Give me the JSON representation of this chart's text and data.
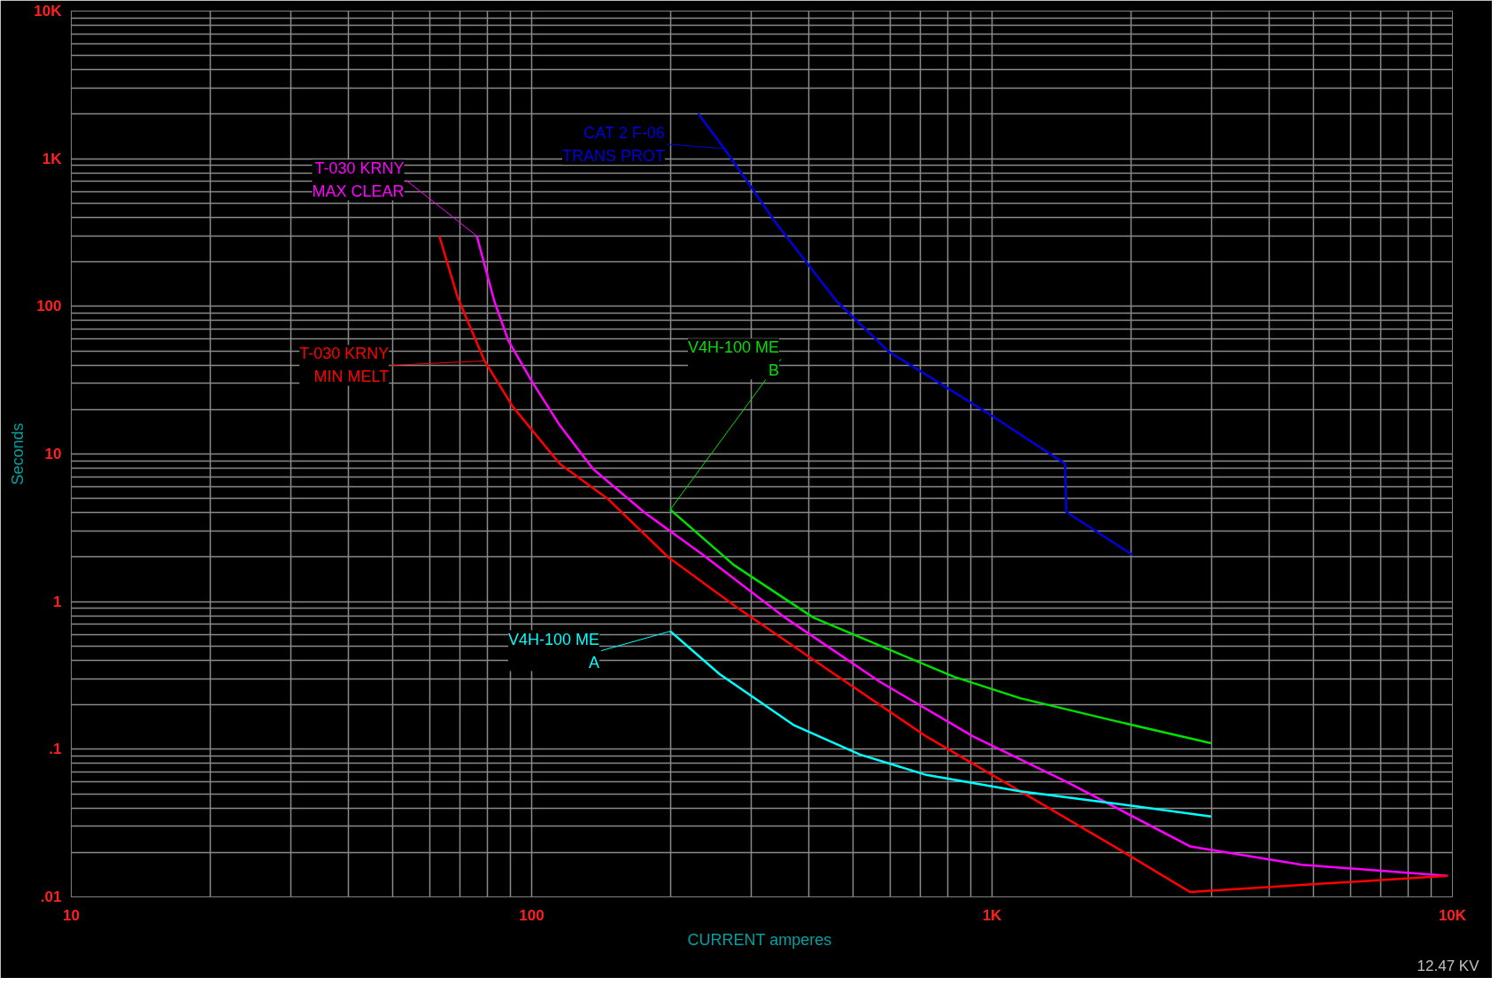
{
  "chart_data": {
    "type": "line",
    "xlabel": "CURRENT  amperes",
    "ylabel": "Seconds",
    "log": "xy",
    "grid": true,
    "legend": "top left",
    "marker": "none",
    "line_style": "solid",
    "xlim": [
      10,
      10000
    ],
    "ylim": [
      0.01,
      10000
    ],
    "xticks": [
      10,
      100,
      {
        "value": 1000,
        "label": "1K"
      },
      {
        "value": 10000,
        "label": "10K"
      }
    ],
    "yticks": [
      {
        "value": 0.01,
        "label": ".01"
      },
      {
        "value": 0.1,
        "label": ".1"
      },
      1,
      10,
      100,
      {
        "value": 1000,
        "label": "1K"
      },
      {
        "value": 10000,
        "label": "10K"
      }
    ],
    "annotations": [
      "12.47 KV"
    ],
    "series": [
      {
        "name": "T-030 KRNY\nMAX CLEAR",
        "color": "#ff00ff",
        "x": [
          76,
          83,
          89,
          100,
          115,
          136,
          176,
          233,
          355,
          569,
          910,
          1455,
          2690,
          4710,
          9770
        ],
        "values": [
          300,
          108,
          58.5,
          31.2,
          15.7,
          7.9,
          4.0,
          2.13,
          0.78,
          0.288,
          0.122,
          0.06,
          0.022,
          0.0165,
          0.0139
        ]
      },
      {
        "name": "T-030 KRNY\nMIN MELT",
        "color": "#ff0000",
        "x": [
          63,
          69,
          79,
          91,
          115,
          146,
          198,
          281,
          450,
          720,
          1150,
          1840,
          2690,
          9770
        ],
        "values": [
          300,
          116,
          42.7,
          20.9,
          8.6,
          5.0,
          2.0,
          0.9,
          0.33,
          0.122,
          0.052,
          0.022,
          0.0108,
          0.0139
        ]
      },
      {
        "name": "CAT 2 F-06\nTRANS PROT",
        "color": "#0000e0",
        "x": [
          230,
          262,
          340,
          460,
          597,
          720,
          1000,
          1440,
          1450,
          2020
        ],
        "values": [
          2020,
          1170,
          364,
          108,
          49.2,
          34.4,
          18.1,
          8.6,
          4.05,
          2.07
        ]
      },
      {
        "name": "V4H-100 ME\nB",
        "color": "#00e000",
        "x": [
          200,
          275,
          409,
          597,
          828,
          1150,
          1840,
          2990
        ],
        "values": [
          4.2,
          1.77,
          0.78,
          0.474,
          0.309,
          0.222,
          0.156,
          0.11
        ]
      },
      {
        "name": "V4H-100 ME\nA",
        "color": "#00ffff",
        "x": [
          200,
          256,
          372,
          517,
          720,
          1150,
          1840,
          2990
        ],
        "values": [
          0.63,
          0.323,
          0.145,
          0.092,
          0.067,
          0.052,
          0.043,
          0.035
        ]
      }
    ]
  }
}
